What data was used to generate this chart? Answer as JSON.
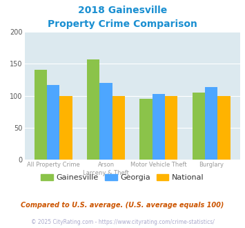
{
  "title_line1": "2018 Gainesville",
  "title_line2": "Property Crime Comparison",
  "cat_labels_line1": [
    "All Property Crime",
    "Arson",
    "Motor Vehicle Theft",
    "Burglary"
  ],
  "cat_labels_line2": [
    "",
    "Larceny & Theft",
    "",
    ""
  ],
  "gainesville": [
    141,
    157,
    95,
    105
  ],
  "georgia": [
    117,
    120,
    103,
    114
  ],
  "national": [
    100,
    100,
    100,
    100
  ],
  "color_gainesville": "#8bc34a",
  "color_georgia": "#4da6ff",
  "color_national": "#ffb300",
  "ylim": [
    0,
    200
  ],
  "yticks": [
    0,
    50,
    100,
    150,
    200
  ],
  "bg_color": "#dce9ef",
  "title_color": "#1a8fd1",
  "xlabel_color": "#999999",
  "footer_note": "Compared to U.S. average. (U.S. average equals 100)",
  "footer_copy": "© 2025 CityRating.com - https://www.cityrating.com/crime-statistics/",
  "footer_note_color": "#cc5500",
  "footer_copy_color": "#aaaacc",
  "legend_labels": [
    "Gainesville",
    "Georgia",
    "National"
  ],
  "legend_text_color": "#333333"
}
